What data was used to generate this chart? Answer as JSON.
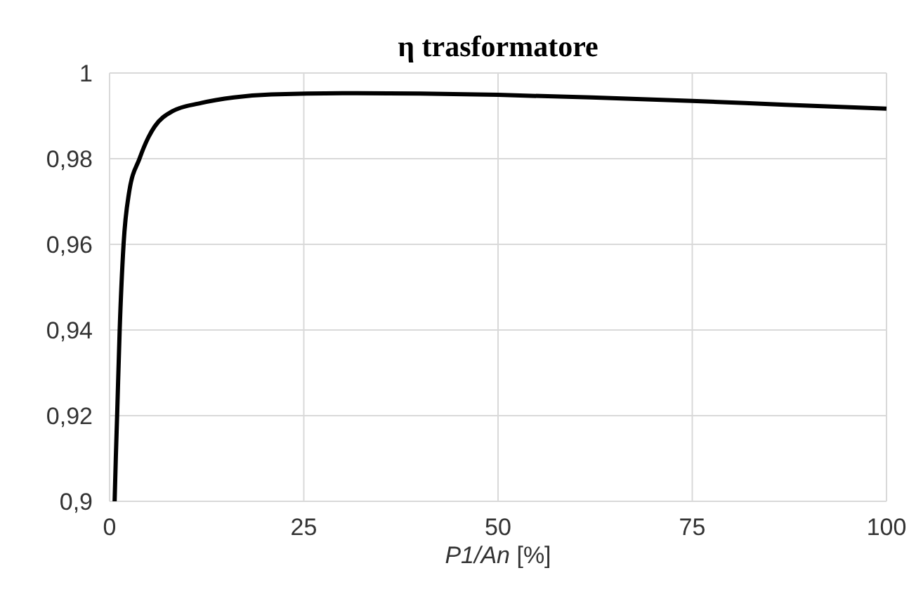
{
  "chart_data": {
    "type": "line",
    "title": "η trasformatore",
    "xlabel": "P1/An [%]",
    "x": [
      0.65,
      0.8,
      0.97,
      1.3,
      1.8,
      2.5,
      3.85,
      5,
      5.8,
      8,
      11.8,
      16,
      20.8,
      30,
      40,
      50,
      62,
      75,
      87,
      100
    ],
    "series": [
      {
        "color": "#000000",
        "values": [
          0.9,
          0.91,
          0.92,
          0.94,
          0.96,
          0.972,
          0.98,
          0.985,
          0.9875,
          0.991,
          0.993,
          0.9943,
          0.995,
          0.9953,
          0.9952,
          0.9949,
          0.9943,
          0.9935,
          0.9926,
          0.9917
        ]
      }
    ],
    "xlim": [
      0,
      100
    ],
    "xticks": [
      0,
      25,
      50,
      75,
      100
    ],
    "ylim": [
      0.9,
      1
    ],
    "yticks": [
      {
        "value": 0.9,
        "label": "0,9"
      },
      {
        "value": 0.92,
        "label": "0,92"
      },
      {
        "value": 0.94,
        "label": "0,94"
      },
      {
        "value": 0.96,
        "label": "0,96"
      },
      {
        "value": 0.98,
        "label": "0,98"
      },
      {
        "value": 1,
        "label": "1"
      }
    ],
    "grid": true,
    "marker": "none",
    "line_style": "solid"
  }
}
